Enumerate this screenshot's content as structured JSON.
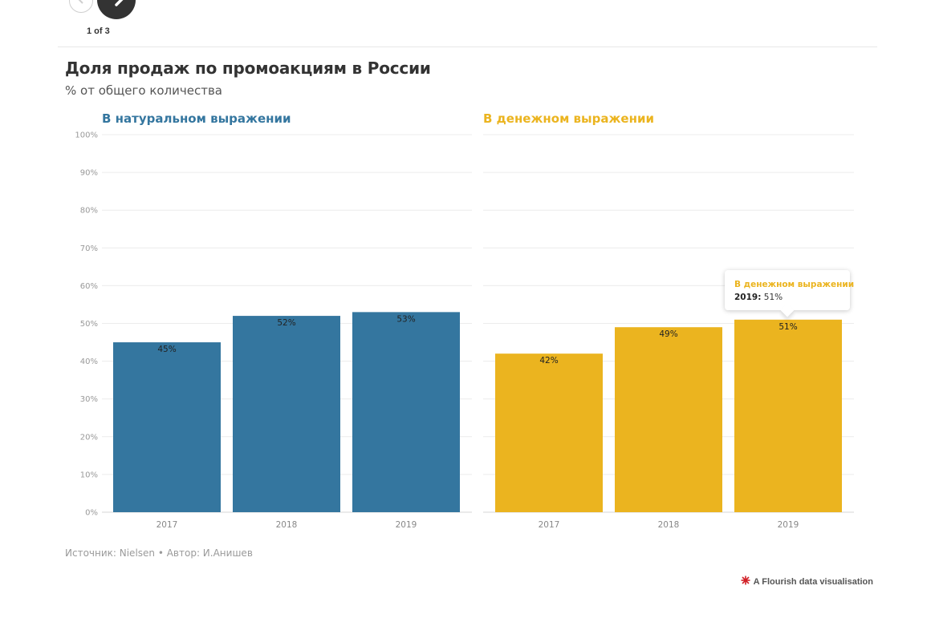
{
  "nav": {
    "counter": "1 of 3"
  },
  "title": "Доля продаж по промоакциям в России",
  "subtitle": "% от общего количества",
  "chart_data": [
    {
      "type": "bar",
      "title": "В натуральном выражении",
      "color": "#34769f",
      "categories": [
        "2017",
        "2018",
        "2019"
      ],
      "values": [
        45,
        52,
        53
      ],
      "value_labels": [
        "45%",
        "52%",
        "53%"
      ],
      "ylim": [
        0,
        100
      ],
      "yticks": [
        "0%",
        "10%",
        "20%",
        "30%",
        "40%",
        "50%",
        "60%",
        "70%",
        "80%",
        "90%",
        "100%"
      ],
      "grid": true
    },
    {
      "type": "bar",
      "title": "В денежном выражении",
      "color": "#ebb41f",
      "categories": [
        "2017",
        "2018",
        "2019"
      ],
      "values": [
        42,
        49,
        51
      ],
      "value_labels": [
        "42%",
        "49%",
        "51%"
      ],
      "ylim": [
        0,
        100
      ],
      "grid": true
    }
  ],
  "tooltip": {
    "series": "В денежном выражении",
    "year": "2019:",
    "value": "51%"
  },
  "footer": "Источник: Nielsen • Автор: И.Анишев",
  "credit": "A Flourish data visualisation",
  "colors": {
    "series1": "#34769f",
    "series2": "#ebb41f",
    "grid": "#ececec"
  }
}
